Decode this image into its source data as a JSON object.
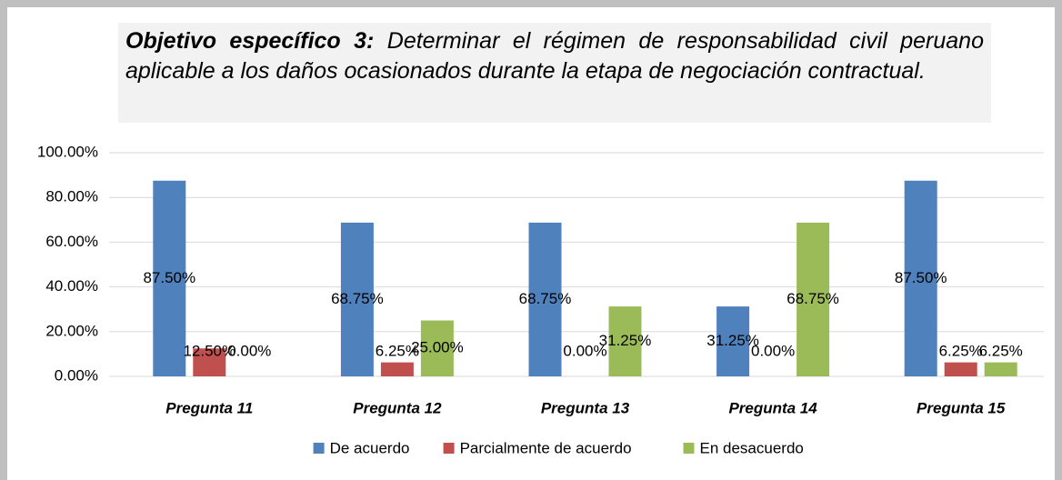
{
  "chart_data": {
    "type": "bar",
    "title_lead": "Objetivo específico 3:",
    "title": "Determinar el régimen de responsabilidad civil peruano aplicable a los daños ocasionados durante la etapa de negociación contractual.",
    "categories": [
      "Pregunta 11",
      "Pregunta 12",
      "Pregunta 13",
      "Pregunta 14",
      "Pregunta 15"
    ],
    "series": [
      {
        "name": "De acuerdo",
        "color": "#4f81bd",
        "values": [
          87.5,
          68.75,
          68.75,
          31.25,
          87.5
        ],
        "value_labels": [
          "87.50%",
          "68.75%",
          "68.75%",
          "31.25%",
          "87.50%"
        ]
      },
      {
        "name": "Parcialmente de acuerdo",
        "color": "#c0504d",
        "values": [
          12.5,
          6.25,
          0,
          0,
          6.25
        ],
        "value_labels": [
          "12.50%",
          "6.25%",
          "0.00%",
          "0.00%",
          "6.25%"
        ]
      },
      {
        "name": "En desacuerdo",
        "color": "#9bbb59",
        "values": [
          0,
          25,
          31.25,
          68.75,
          6.25
        ],
        "value_labels": [
          "0.00%",
          "25.00%",
          "31.25%",
          "68.75%",
          "6.25%"
        ]
      }
    ],
    "ylim": [
      0,
      100
    ],
    "yticks": [
      {
        "value": 0,
        "label": "0.00%"
      },
      {
        "value": 20,
        "label": "20.00%"
      },
      {
        "value": 40,
        "label": "40.00%"
      },
      {
        "value": 60,
        "label": "60.00%"
      },
      {
        "value": 80,
        "label": "80.00%"
      },
      {
        "value": 100,
        "label": "100.00%"
      }
    ],
    "grid": true,
    "legend": "bottom"
  }
}
